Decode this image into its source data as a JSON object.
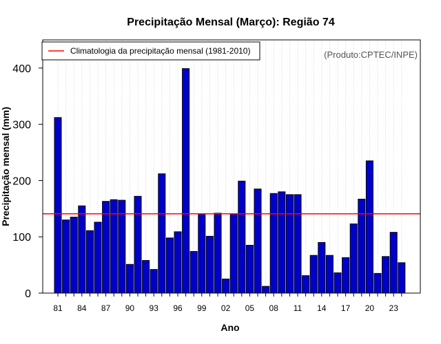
{
  "chart_data": {
    "type": "bar",
    "title": "Precipitação Mensal (Março): Região 74",
    "xlabel": "Ano",
    "ylabel": "Precipitação mensal (mm)",
    "credit": "(Produto:CPTEC/INPE)",
    "ylim": [
      0,
      450
    ],
    "yticks": [
      0,
      100,
      200,
      300,
      400
    ],
    "categories": [
      "81",
      "82",
      "83",
      "84",
      "85",
      "86",
      "87",
      "88",
      "89",
      "90",
      "91",
      "92",
      "93",
      "94",
      "95",
      "96",
      "97",
      "98",
      "99",
      "00",
      "01",
      "02",
      "03",
      "04",
      "05",
      "06",
      "07",
      "08",
      "09",
      "10",
      "11",
      "12",
      "13",
      "14",
      "15",
      "16",
      "17",
      "18",
      "19",
      "20",
      "21",
      "22",
      "23",
      "24"
    ],
    "xtick_labels": [
      "81",
      "84",
      "87",
      "90",
      "93",
      "96",
      "99",
      "02",
      "05",
      "08",
      "11",
      "14",
      "17",
      "20",
      "23"
    ],
    "values": [
      312,
      130,
      135,
      155,
      111,
      126,
      163,
      166,
      165,
      51,
      172,
      58,
      42,
      212,
      98,
      109,
      399,
      74,
      141,
      101,
      142,
      25,
      141,
      199,
      85,
      185,
      12,
      177,
      180,
      175,
      175,
      31,
      67,
      90,
      67,
      36,
      63,
      123,
      167,
      235,
      35,
      65,
      108,
      54
    ],
    "bar_color": "#0000cc",
    "reference_line": {
      "value": 141,
      "label": "Climatologia da precipitação mensal (1981-2010)",
      "color": "#ff0000"
    },
    "grid": true,
    "legend_position": "top-left"
  }
}
